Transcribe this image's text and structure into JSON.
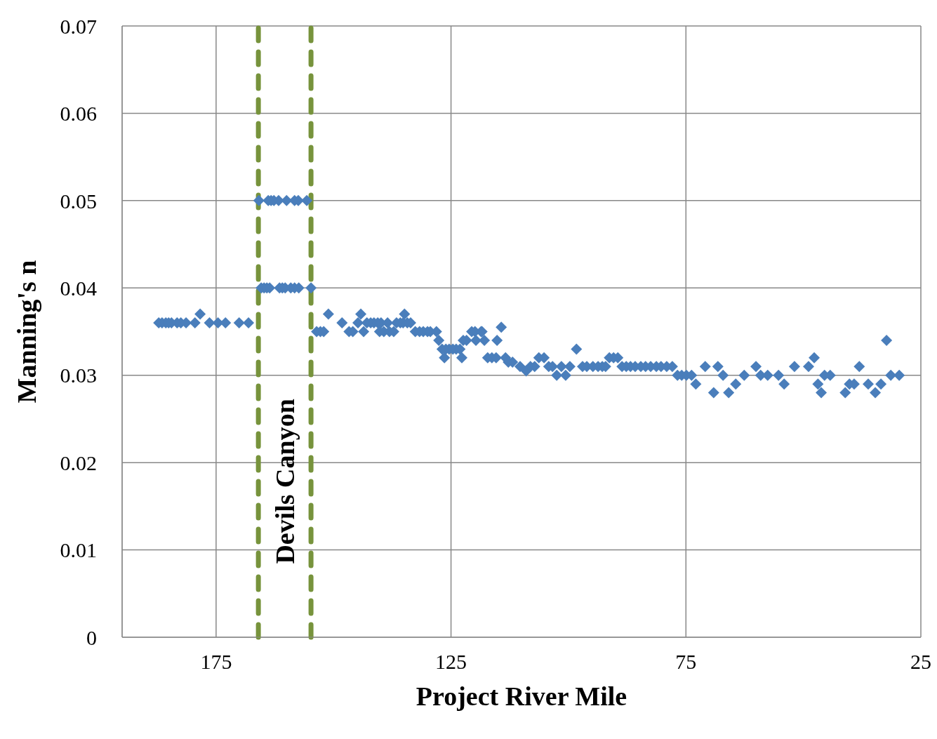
{
  "chart_data": {
    "type": "scatter",
    "xlabel": "Project River Mile",
    "ylabel": "Manning's n",
    "xlim": [
      195,
      25
    ],
    "xticks": [
      175,
      125,
      75,
      25
    ],
    "ylim": [
      0,
      0.07
    ],
    "yticks": [
      0,
      0.01,
      0.02,
      0.03,
      0.04,
      0.05,
      0.06,
      0.07
    ],
    "grid": true,
    "marker": "diamond",
    "legend": false,
    "ref_lines": [
      {
        "axis": "x",
        "value": 166,
        "color": "#77933c",
        "line_style": "dashed"
      },
      {
        "axis": "x",
        "value": 154.8,
        "color": "#77933c",
        "line_style": "dashed"
      }
    ],
    "annotations": [
      "Devils Canyon"
    ],
    "series": [
      {
        "color": "#4a7ebb",
        "x": [
          187.2,
          186.5,
          185.7,
          185.1,
          184.5,
          183.3,
          182.5,
          181.4,
          179.5,
          178.4,
          176.4,
          174.6,
          173.0,
          170.1,
          168.1,
          165.9,
          163.9,
          163.3,
          162.7,
          161.7,
          160.0,
          158.3,
          157.5,
          155.7,
          165.4,
          164.8,
          164.2,
          163.6,
          161.5,
          160.9,
          160.3,
          159.1,
          158.3,
          157.4,
          154.8,
          153.6,
          152.8,
          152.1,
          151.1,
          148.2,
          146.7,
          145.9,
          144.8,
          144.2,
          143.6,
          142.9,
          142.1,
          141.4,
          140.6,
          139.9,
          140.2,
          139.3,
          138.1,
          137.2,
          138.5,
          136.6,
          135.8,
          135.2,
          134.3,
          133.6,
          134.9,
          132.6,
          131.7,
          130.9,
          130.0,
          129.4,
          128.1,
          127.6,
          126.9,
          126.1,
          125.4,
          124.6,
          123.9,
          123.1,
          126.4,
          122.7,
          122.4,
          121.7,
          120.6,
          119.9,
          118.4,
          119.7,
          117.9,
          118.6,
          115.2,
          114.3,
          117.2,
          116.3,
          115.4,
          113.4,
          112.8,
          111.9,
          110.3,
          109.0,
          108.1,
          107.2,
          106.3,
          105.2,
          104.2,
          103.4,
          102.5,
          101.5,
          100.6,
          99.7,
          98.3,
          97.0,
          96.1,
          94.8,
          93.7,
          92.8,
          92.1,
          91.3,
          90.4,
          89.5,
          88.6,
          87.7,
          86.8,
          85.8,
          84.6,
          83.6,
          82.5,
          81.3,
          80.3,
          79.1,
          77.9,
          76.8,
          75.9,
          74.9,
          73.8,
          72.9,
          70.9,
          69.1,
          68.2,
          67.1,
          65.9,
          64.4,
          62.6,
          60.1,
          59.1,
          57.6,
          55.3,
          54.1,
          51.9,
          48.9,
          47.7,
          46.9,
          46.2,
          45.5,
          44.3,
          41.1,
          40.2,
          39.2,
          38.1,
          36.2,
          34.7,
          33.5,
          32.3,
          31.4,
          29.6
        ],
        "values": [
          0.036,
          0.036,
          0.036,
          0.036,
          0.036,
          0.036,
          0.036,
          0.036,
          0.036,
          0.037,
          0.036,
          0.036,
          0.036,
          0.036,
          0.036,
          0.05,
          0.05,
          0.05,
          0.05,
          0.05,
          0.05,
          0.05,
          0.05,
          0.05,
          0.04,
          0.04,
          0.04,
          0.04,
          0.04,
          0.04,
          0.04,
          0.04,
          0.04,
          0.04,
          0.04,
          0.035,
          0.035,
          0.035,
          0.037,
          0.036,
          0.035,
          0.035,
          0.036,
          0.037,
          0.035,
          0.036,
          0.036,
          0.036,
          0.036,
          0.036,
          0.035,
          0.035,
          0.035,
          0.035,
          0.036,
          0.036,
          0.036,
          0.036,
          0.036,
          0.036,
          0.037,
          0.035,
          0.035,
          0.035,
          0.035,
          0.035,
          0.035,
          0.034,
          0.033,
          0.033,
          0.033,
          0.033,
          0.033,
          0.033,
          0.032,
          0.032,
          0.034,
          0.034,
          0.035,
          0.035,
          0.035,
          0.034,
          0.034,
          0.035,
          0.034,
          0.0355,
          0.032,
          0.032,
          0.032,
          0.032,
          0.0315,
          0.0315,
          0.031,
          0.0305,
          0.031,
          0.031,
          0.032,
          0.032,
          0.031,
          0.031,
          0.03,
          0.031,
          0.03,
          0.031,
          0.033,
          0.031,
          0.031,
          0.031,
          0.031,
          0.031,
          0.031,
          0.032,
          0.032,
          0.032,
          0.031,
          0.031,
          0.031,
          0.031,
          0.031,
          0.031,
          0.031,
          0.031,
          0.031,
          0.031,
          0.031,
          0.03,
          0.03,
          0.03,
          0.03,
          0.029,
          0.031,
          0.028,
          0.031,
          0.03,
          0.028,
          0.029,
          0.03,
          0.031,
          0.03,
          0.03,
          0.03,
          0.029,
          0.031,
          0.031,
          0.032,
          0.029,
          0.028,
          0.03,
          0.03,
          0.028,
          0.029,
          0.029,
          0.031,
          0.029,
          0.028,
          0.029,
          0.034,
          0.03,
          0.03
        ]
      }
    ]
  }
}
